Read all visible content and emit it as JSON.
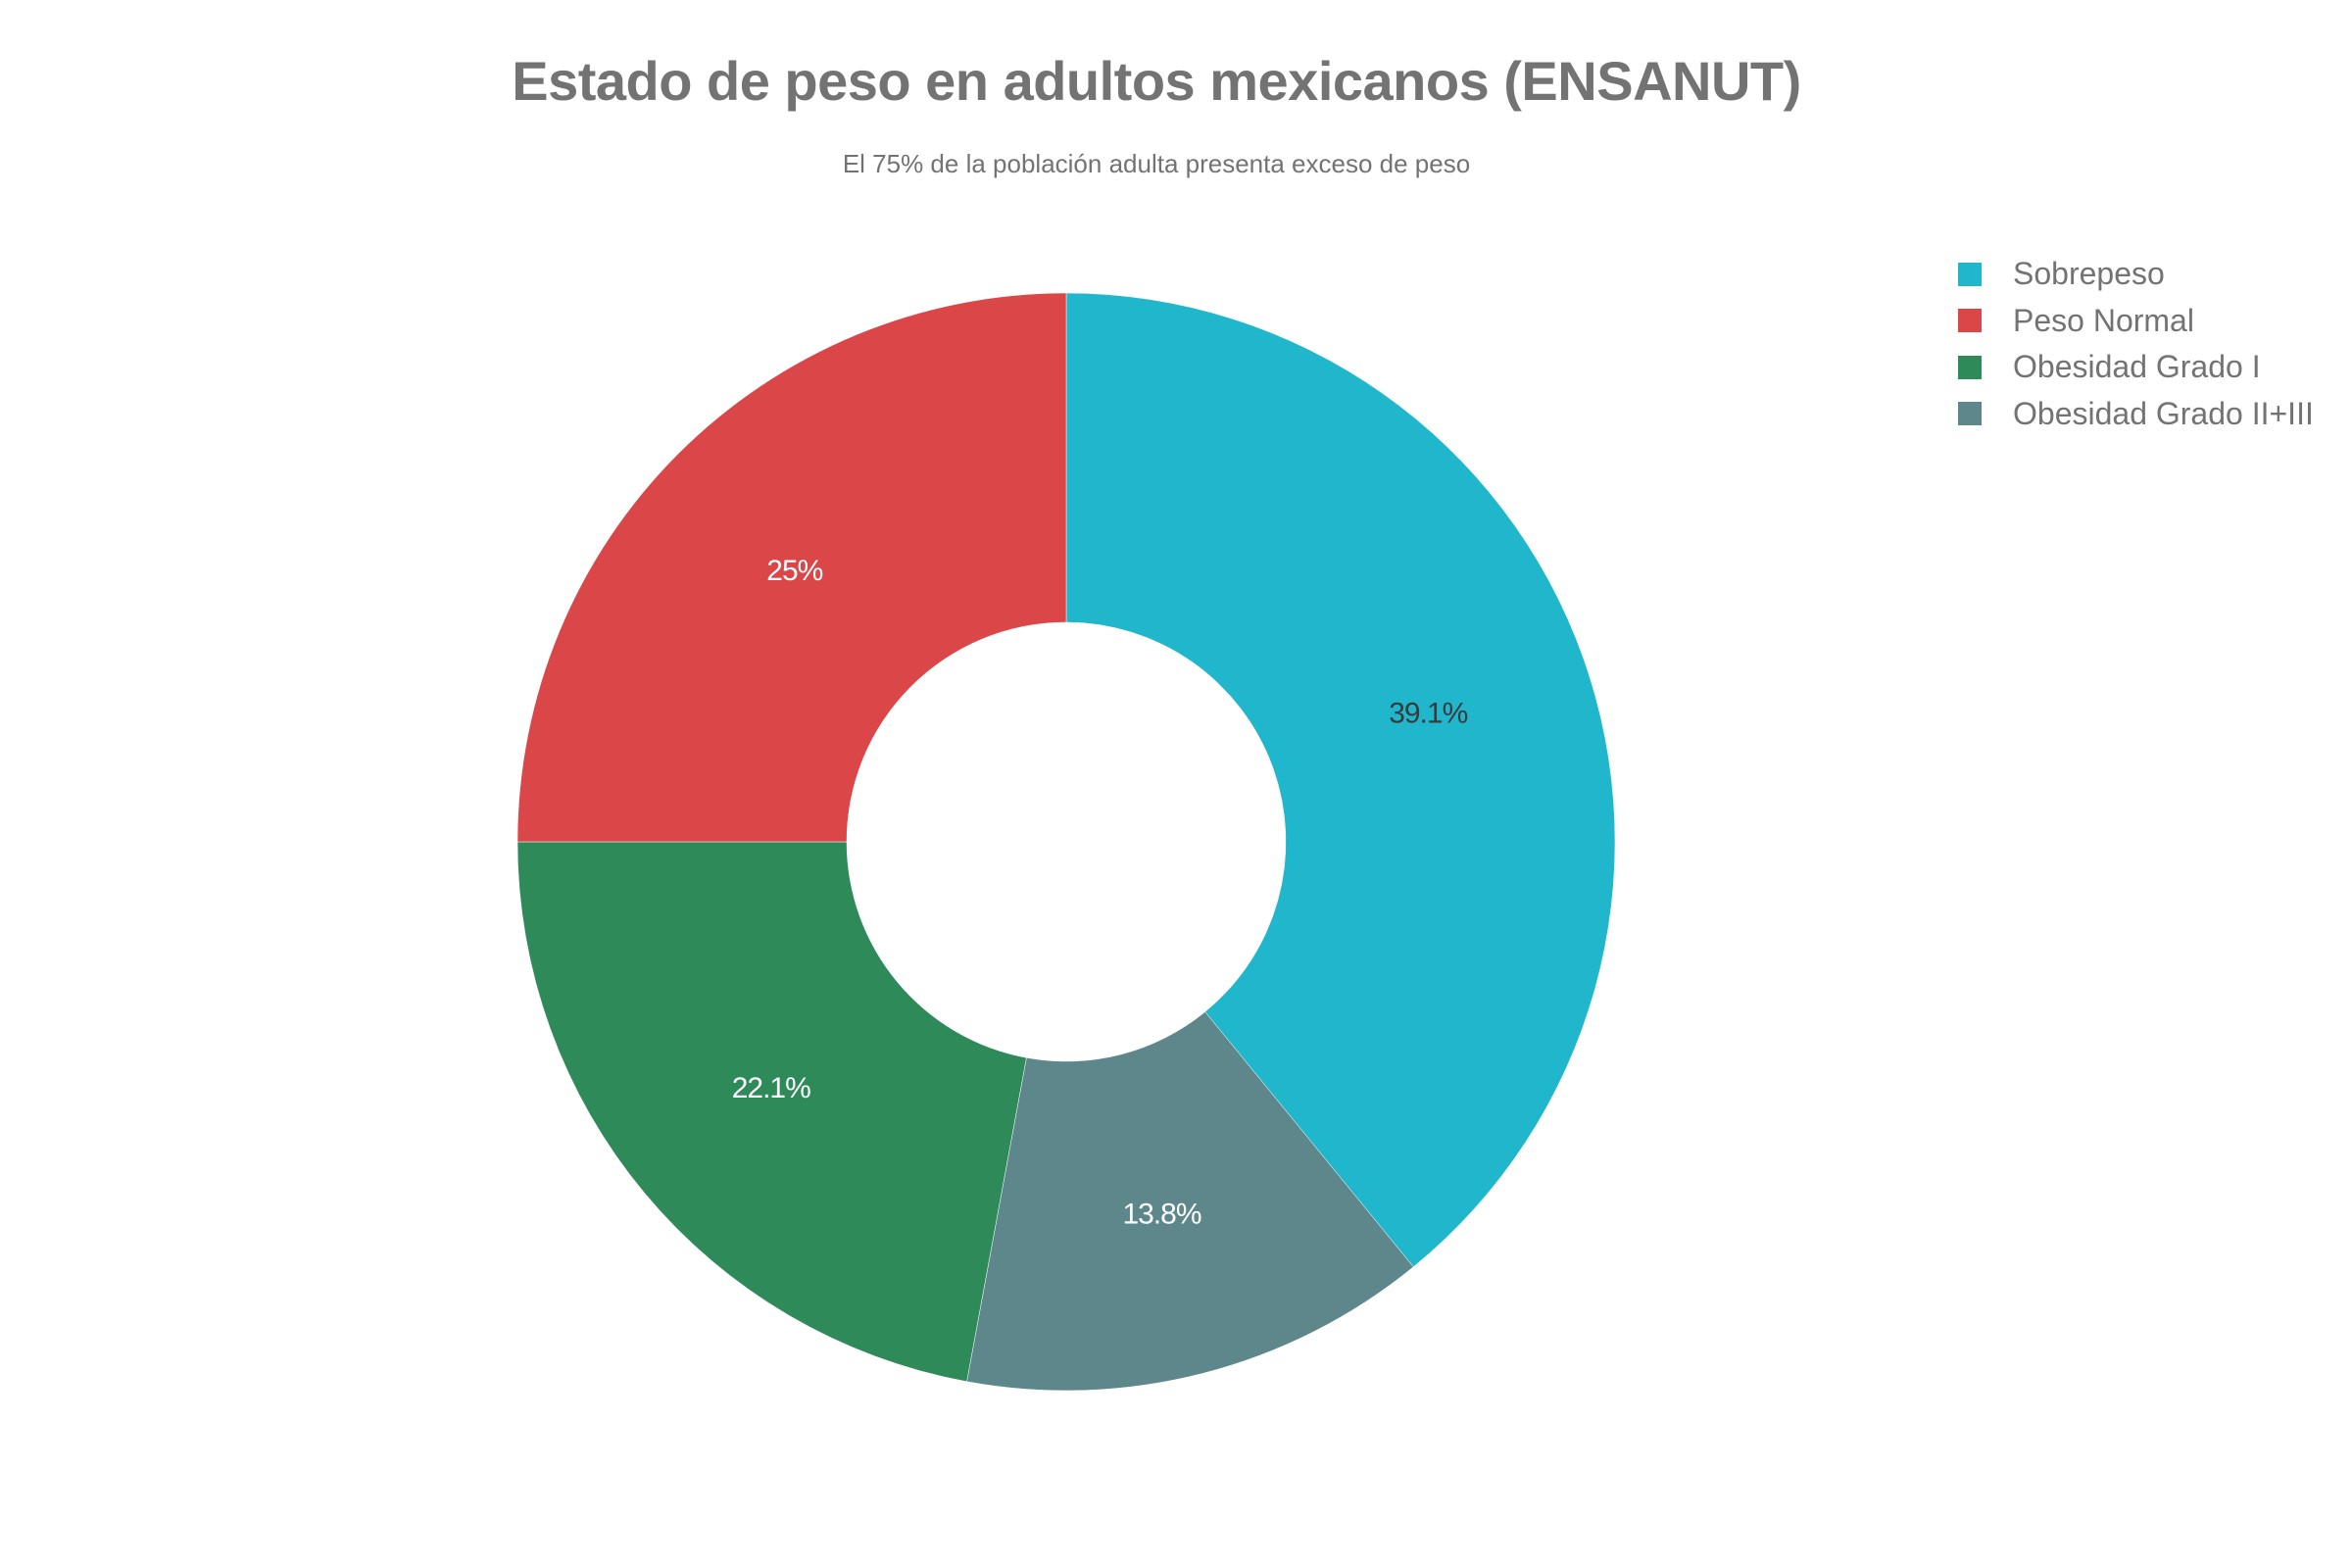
{
  "header": {
    "title": "Estado de peso en adultos mexicanos (ENSANUT)",
    "subtitle": "El 75% de la población adulta presenta exceso de peso"
  },
  "legend": {
    "items": [
      {
        "label": "Sobrepeso",
        "color": "#20B7CD"
      },
      {
        "label": "Peso Normal",
        "color": "#DB4649"
      },
      {
        "label": "Obesidad Grado I",
        "color": "#2E8A59"
      },
      {
        "label": "Obesidad Grado II+III",
        "color": "#5D878B"
      }
    ]
  },
  "slices": [
    {
      "label": "Sobrepeso",
      "value": 39.1,
      "text": "39.1%",
      "color": "#20B7CD",
      "text_color": "#3a3a3a"
    },
    {
      "label": "Obesidad Grado II+III",
      "value": 13.8,
      "text": "13.8%",
      "color": "#5D878B",
      "text_color": "#ffffff"
    },
    {
      "label": "Obesidad Grado I",
      "value": 22.1,
      "text": "22.1%",
      "color": "#2E8A59",
      "text_color": "#ffffff"
    },
    {
      "label": "Peso Normal",
      "value": 25,
      "text": "25%",
      "color": "#DB4649",
      "text_color": "#ffffff"
    }
  ],
  "chart_data": {
    "type": "pie",
    "title": "Estado de peso en adultos mexicanos (ENSANUT)",
    "subtitle": "El 75% de la población adulta presenta exceso de peso",
    "categories": [
      "Sobrepeso",
      "Peso Normal",
      "Obesidad Grado I",
      "Obesidad Grado II+III"
    ],
    "values": [
      39.1,
      25,
      22.1,
      13.8
    ],
    "labels": [
      "39.1%",
      "25%",
      "22.1%",
      "13.8%"
    ],
    "colors": [
      "#20B7CD",
      "#DB4649",
      "#2E8A59",
      "#5D878B"
    ],
    "hole": 0.4,
    "direction": "clockwise",
    "start_angle": 90,
    "legend_position": "top-right"
  }
}
